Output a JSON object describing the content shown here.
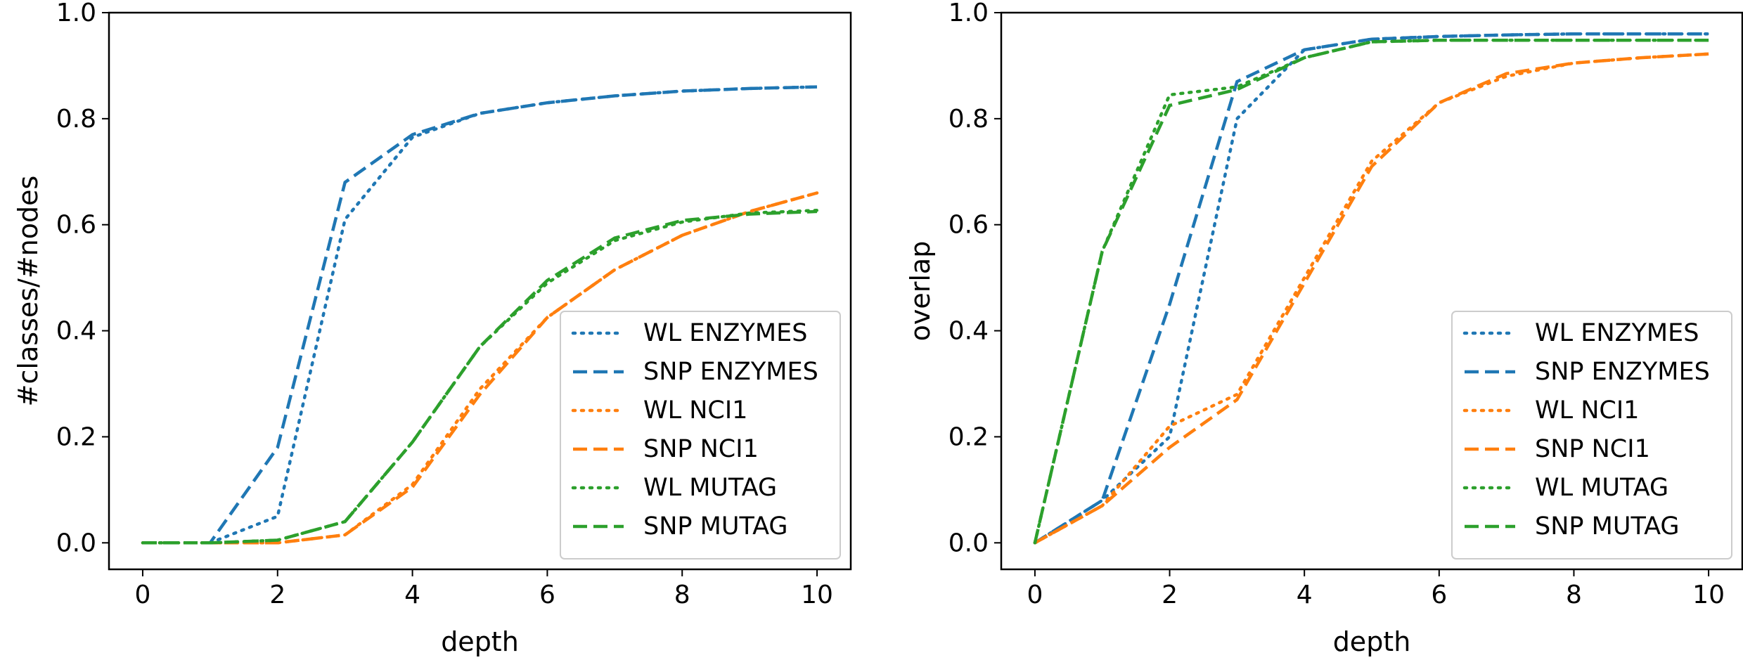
{
  "chart_data": [
    {
      "type": "line",
      "id": "left",
      "xlabel": "depth",
      "ylabel": "#classes/#nodes",
      "xlim": [
        -0.5,
        10.5
      ],
      "ylim": [
        -0.05,
        1.0
      ],
      "xticks": [
        0,
        2,
        4,
        6,
        8,
        10
      ],
      "xtick_labels": [
        "0",
        "2",
        "4",
        "6",
        "8",
        "10"
      ],
      "yticks": [
        0.0,
        0.2,
        0.4,
        0.6,
        0.8,
        1.0
      ],
      "ytick_labels": [
        "0.0",
        "0.2",
        "0.4",
        "0.6",
        "0.8",
        "1.0"
      ],
      "legend_position": "lower-right",
      "x": [
        0,
        1,
        2,
        3,
        4,
        5,
        6,
        7,
        8,
        9,
        10
      ],
      "series": [
        {
          "name": "WL ENZYMES",
          "color": "#1f77b4",
          "style": "dotted",
          "values": [
            0.0,
            0.0,
            0.05,
            0.61,
            0.765,
            0.81,
            0.83,
            0.843,
            0.852,
            0.857,
            0.86
          ]
        },
        {
          "name": "SNP ENZYMES",
          "color": "#1f77b4",
          "style": "dashed",
          "values": [
            0.0,
            0.0,
            0.18,
            0.68,
            0.77,
            0.81,
            0.83,
            0.843,
            0.852,
            0.857,
            0.86
          ]
        },
        {
          "name": "WL NCI1",
          "color": "#ff7f0e",
          "style": "dotted",
          "values": [
            0.0,
            0.0,
            0.0,
            0.015,
            0.11,
            0.29,
            0.425,
            0.515,
            0.58,
            0.625,
            0.66
          ]
        },
        {
          "name": "SNP NCI1",
          "color": "#ff7f0e",
          "style": "dashed",
          "values": [
            0.0,
            0.0,
            0.0,
            0.015,
            0.105,
            0.28,
            0.425,
            0.515,
            0.58,
            0.625,
            0.66
          ]
        },
        {
          "name": "WL MUTAG",
          "color": "#2ca02c",
          "style": "dotted",
          "values": [
            0.0,
            0.0,
            0.005,
            0.04,
            0.19,
            0.37,
            0.49,
            0.57,
            0.605,
            0.622,
            0.627
          ]
        },
        {
          "name": "SNP MUTAG",
          "color": "#2ca02c",
          "style": "dashed",
          "values": [
            0.0,
            0.0,
            0.005,
            0.04,
            0.19,
            0.37,
            0.495,
            0.575,
            0.608,
            0.62,
            0.625
          ]
        }
      ]
    },
    {
      "type": "line",
      "id": "right",
      "xlabel": "depth",
      "ylabel": "overlap",
      "xlim": [
        -0.5,
        10.5
      ],
      "ylim": [
        -0.05,
        1.0
      ],
      "xticks": [
        0,
        2,
        4,
        6,
        8,
        10
      ],
      "xtick_labels": [
        "0",
        "2",
        "4",
        "6",
        "8",
        "10"
      ],
      "yticks": [
        0.0,
        0.2,
        0.4,
        0.6,
        0.8,
        1.0
      ],
      "ytick_labels": [
        "0.0",
        "0.2",
        "0.4",
        "0.6",
        "0.8",
        "1.0"
      ],
      "legend_position": "lower-right",
      "x": [
        0,
        1,
        2,
        3,
        4,
        5,
        6,
        7,
        8,
        9,
        10
      ],
      "series": [
        {
          "name": "WL ENZYMES",
          "color": "#1f77b4",
          "style": "dotted",
          "values": [
            0.0,
            0.08,
            0.2,
            0.8,
            0.93,
            0.95,
            0.955,
            0.958,
            0.96,
            0.96,
            0.96
          ]
        },
        {
          "name": "SNP ENZYMES",
          "color": "#1f77b4",
          "style": "dashed",
          "values": [
            0.0,
            0.08,
            0.45,
            0.87,
            0.93,
            0.95,
            0.955,
            0.958,
            0.96,
            0.96,
            0.96
          ]
        },
        {
          "name": "WL NCI1",
          "color": "#ff7f0e",
          "style": "dotted",
          "values": [
            0.0,
            0.07,
            0.22,
            0.28,
            0.5,
            0.72,
            0.83,
            0.88,
            0.905,
            0.915,
            0.922
          ]
        },
        {
          "name": "SNP NCI1",
          "color": "#ff7f0e",
          "style": "dashed",
          "values": [
            0.0,
            0.07,
            0.18,
            0.27,
            0.49,
            0.71,
            0.83,
            0.885,
            0.905,
            0.915,
            0.922
          ]
        },
        {
          "name": "WL MUTAG",
          "color": "#2ca02c",
          "style": "dotted",
          "values": [
            0.0,
            0.55,
            0.845,
            0.86,
            0.915,
            0.945,
            0.948,
            0.948,
            0.948,
            0.948,
            0.948
          ]
        },
        {
          "name": "SNP MUTAG",
          "color": "#2ca02c",
          "style": "dashed",
          "values": [
            0.0,
            0.55,
            0.825,
            0.855,
            0.915,
            0.945,
            0.948,
            0.948,
            0.948,
            0.948,
            0.948
          ]
        }
      ]
    }
  ]
}
